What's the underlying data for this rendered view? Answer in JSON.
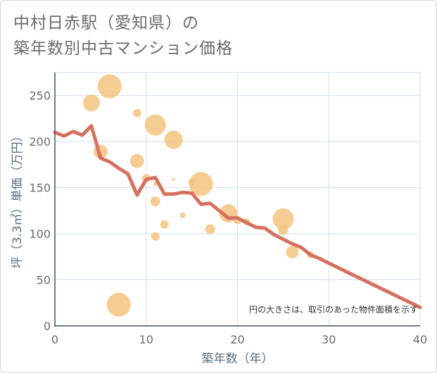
{
  "title": {
    "line1": "中村日赤駅（愛知県）の",
    "line2": "築年数別中古マンション価格"
  },
  "chart_data": {
    "type": "scatter+line",
    "xlabel": "築年数（年）",
    "ylabel": "坪（3.3㎡）単価（万円）",
    "xlim": [
      0,
      40
    ],
    "ylim": [
      0,
      275
    ],
    "x_ticks": [
      0,
      10,
      20,
      30,
      40
    ],
    "y_ticks": [
      0,
      50,
      100,
      150,
      200,
      250
    ],
    "grid": true,
    "annotation": "円の大きさは、取引のあった物件面積を示す",
    "colors": {
      "bubble": "#f3c27a",
      "line": "#d4715f",
      "grid": "#d2dfe9",
      "axis": "#3f5568"
    },
    "bubbles": [
      {
        "x": 4,
        "y": 242,
        "size": 12
      },
      {
        "x": 5,
        "y": 189,
        "size": 10
      },
      {
        "x": 6,
        "y": 260,
        "size": 17
      },
      {
        "x": 7,
        "y": 23,
        "size": 17
      },
      {
        "x": 9,
        "y": 231,
        "size": 6
      },
      {
        "x": 9,
        "y": 179,
        "size": 10
      },
      {
        "x": 10,
        "y": 160,
        "size": 6
      },
      {
        "x": 11,
        "y": 218,
        "size": 15
      },
      {
        "x": 11,
        "y": 135,
        "size": 7
      },
      {
        "x": 11,
        "y": 97,
        "size": 6
      },
      {
        "x": 11,
        "y": 154,
        "size": 3
      },
      {
        "x": 12,
        "y": 110,
        "size": 6
      },
      {
        "x": 13,
        "y": 202,
        "size": 13
      },
      {
        "x": 13,
        "y": 159,
        "size": 2
      },
      {
        "x": 14,
        "y": 120,
        "size": 4
      },
      {
        "x": 15,
        "y": 156,
        "size": 5
      },
      {
        "x": 16,
        "y": 154,
        "size": 17
      },
      {
        "x": 17,
        "y": 105,
        "size": 7
      },
      {
        "x": 19,
        "y": 122,
        "size": 13
      },
      {
        "x": 20,
        "y": 115,
        "size": 6
      },
      {
        "x": 21,
        "y": 113,
        "size": 5
      },
      {
        "x": 25,
        "y": 116,
        "size": 15
      },
      {
        "x": 25,
        "y": 104,
        "size": 7
      },
      {
        "x": 26,
        "y": 80,
        "size": 9
      },
      {
        "x": 28,
        "y": 77,
        "size": 5
      }
    ],
    "trend": [
      {
        "x": 0,
        "y": 210
      },
      {
        "x": 1,
        "y": 206
      },
      {
        "x": 2,
        "y": 211
      },
      {
        "x": 3,
        "y": 207
      },
      {
        "x": 4,
        "y": 217
      },
      {
        "x": 5,
        "y": 182
      },
      {
        "x": 6,
        "y": 178
      },
      {
        "x": 7,
        "y": 171
      },
      {
        "x": 8,
        "y": 165
      },
      {
        "x": 9,
        "y": 142
      },
      {
        "x": 10,
        "y": 159
      },
      {
        "x": 11,
        "y": 161
      },
      {
        "x": 12,
        "y": 143
      },
      {
        "x": 13,
        "y": 143
      },
      {
        "x": 14,
        "y": 145
      },
      {
        "x": 15,
        "y": 144
      },
      {
        "x": 16,
        "y": 132
      },
      {
        "x": 17,
        "y": 133
      },
      {
        "x": 18,
        "y": 125
      },
      {
        "x": 19,
        "y": 117
      },
      {
        "x": 20,
        "y": 117
      },
      {
        "x": 21,
        "y": 112
      },
      {
        "x": 22,
        "y": 107
      },
      {
        "x": 23,
        "y": 106
      },
      {
        "x": 24,
        "y": 99
      },
      {
        "x": 25,
        "y": 94
      },
      {
        "x": 26,
        "y": 89
      },
      {
        "x": 27,
        "y": 85
      },
      {
        "x": 28,
        "y": 77
      },
      {
        "x": 29,
        "y": 73
      },
      {
        "x": 30,
        "y": 68
      },
      {
        "x": 40,
        "y": 20
      }
    ]
  }
}
